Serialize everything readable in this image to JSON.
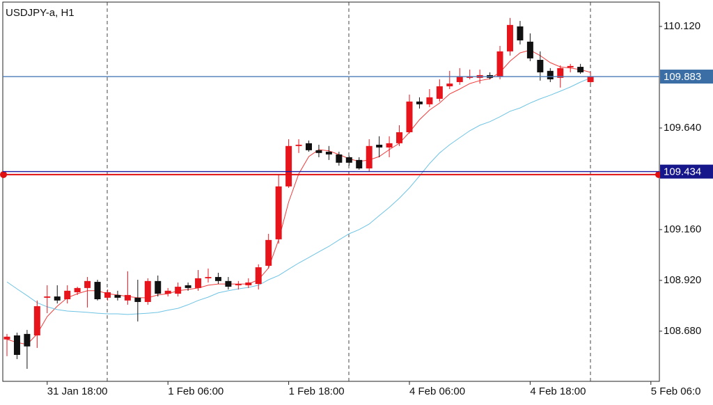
{
  "chart_data": {
    "type": "candlestick",
    "title": "USDJPY-a, H1",
    "open": [
      108.641,
      108.66,
      108.667,
      108.66,
      108.838,
      108.844,
      108.831,
      108.864,
      108.884,
      108.913,
      108.838,
      108.851,
      108.825,
      108.838,
      108.818,
      108.917,
      108.857,
      108.857,
      108.897,
      108.884,
      108.93,
      108.936,
      108.917,
      108.897,
      108.897,
      108.903,
      108.989,
      109.114,
      109.364,
      109.555,
      109.568,
      109.535,
      109.528,
      109.515,
      109.502,
      109.489,
      109.449,
      109.561,
      109.548,
      109.568,
      109.62,
      109.765,
      109.752,
      109.778,
      109.837,
      109.857,
      109.877,
      109.877,
      109.89,
      109.883,
      110.002,
      110.12,
      110.048,
      109.962,
      109.91,
      109.877,
      109.926,
      109.929,
      109.857
    ],
    "high": [
      108.667,
      108.673,
      108.686,
      108.825,
      108.897,
      108.897,
      108.897,
      108.89,
      108.936,
      108.923,
      108.877,
      108.871,
      108.963,
      108.923,
      108.93,
      108.943,
      108.884,
      108.91,
      108.91,
      108.969,
      108.976,
      108.956,
      108.936,
      108.917,
      108.93,
      108.996,
      109.14,
      109.423,
      109.587,
      109.587,
      109.581,
      109.561,
      109.555,
      109.528,
      109.509,
      109.502,
      109.587,
      109.601,
      109.601,
      109.653,
      109.798,
      109.785,
      109.824,
      109.87,
      109.91,
      109.923,
      109.916,
      109.916,
      109.903,
      110.028,
      110.16,
      110.146,
      110.087,
      110.002,
      109.923,
      109.936,
      109.943,
      109.943,
      109.903
    ],
    "low": [
      108.562,
      108.548,
      108.502,
      108.601,
      108.765,
      108.811,
      108.811,
      108.851,
      108.792,
      108.825,
      108.825,
      108.825,
      108.805,
      108.726,
      108.805,
      108.844,
      108.844,
      108.844,
      108.871,
      108.871,
      108.91,
      108.903,
      108.877,
      108.877,
      108.884,
      108.877,
      108.976,
      109.094,
      109.357,
      109.522,
      109.528,
      109.502,
      109.489,
      109.462,
      109.462,
      109.443,
      109.436,
      109.502,
      109.502,
      109.555,
      109.614,
      109.732,
      109.739,
      109.765,
      109.824,
      109.844,
      109.87,
      109.85,
      109.87,
      109.87,
      109.982,
      110.035,
      109.956,
      109.864,
      109.857,
      109.831,
      109.903,
      109.896,
      109.85
    ],
    "close": [
      108.654,
      108.568,
      108.608,
      108.798,
      108.844,
      108.825,
      108.871,
      108.884,
      108.917,
      108.831,
      108.864,
      108.838,
      108.851,
      108.818,
      108.917,
      108.857,
      108.871,
      108.89,
      108.884,
      108.93,
      108.936,
      108.917,
      108.89,
      108.903,
      108.91,
      108.982,
      109.111,
      109.364,
      109.555,
      109.561,
      109.535,
      109.522,
      109.515,
      109.476,
      109.476,
      109.449,
      109.555,
      109.548,
      109.568,
      109.62,
      109.765,
      109.752,
      109.785,
      109.837,
      109.85,
      109.883,
      109.883,
      109.89,
      109.877,
      110.002,
      110.127,
      110.054,
      109.969,
      109.903,
      109.87,
      109.923,
      109.933,
      109.903,
      109.883
    ],
    "up_color": "#e8141c",
    "down_color": "#111111",
    "lines": [
      {
        "color": "#f03c3c",
        "values": [
          108.641,
          108.627,
          108.617,
          108.667,
          108.749,
          108.798,
          108.838,
          108.857,
          108.871,
          108.871,
          108.857,
          108.851,
          108.844,
          108.838,
          108.838,
          108.851,
          108.857,
          108.871,
          108.877,
          108.884,
          108.897,
          108.903,
          108.903,
          108.903,
          108.903,
          108.923,
          108.979,
          109.111,
          109.291,
          109.423,
          109.505,
          109.538,
          109.532,
          109.515,
          109.495,
          109.482,
          109.489,
          109.505,
          109.538,
          109.568,
          109.62,
          109.679,
          109.725,
          109.758,
          109.801,
          109.824,
          109.85,
          109.864,
          109.873,
          109.903,
          109.956,
          109.995,
          110.008,
          109.982,
          109.949,
          109.929,
          109.923,
          109.916,
          109.903
        ]
      },
      {
        "color": "#6ec3e4",
        "values": [
          108.913,
          108.88,
          108.848,
          108.815,
          108.795,
          108.782,
          108.775,
          108.772,
          108.769,
          108.765,
          108.762,
          108.762,
          108.759,
          108.762,
          108.765,
          108.769,
          108.779,
          108.788,
          108.805,
          108.825,
          108.841,
          108.861,
          108.871,
          108.88,
          108.887,
          108.897,
          108.923,
          108.943,
          108.973,
          109.002,
          109.028,
          109.055,
          109.081,
          109.111,
          109.14,
          109.16,
          109.186,
          109.226,
          109.265,
          109.308,
          109.357,
          109.413,
          109.472,
          109.522,
          109.561,
          109.594,
          109.627,
          109.653,
          109.67,
          109.693,
          109.719,
          109.735,
          109.758,
          109.778,
          109.795,
          109.814,
          109.834,
          109.857,
          109.877
        ]
      }
    ],
    "levels": [
      {
        "value": 109.42,
        "color": "#e01010"
      },
      {
        "value": 109.434,
        "label": "109.434",
        "color": "#1a1aa0",
        "label_bg": "#17178c"
      },
      {
        "value": 109.883,
        "label": "109.883",
        "color": "#4a7ab8",
        "label_bg": "#3a6ea5"
      }
    ],
    "xlim": [
      -0.415,
      64.845
    ],
    "xticks": [
      {
        "value": 4,
        "label": "31 Jan 18:00"
      },
      {
        "value": 16,
        "label": "1 Feb 06:00"
      },
      {
        "value": 28,
        "label": "1 Feb 18:00"
      },
      {
        "value": 40,
        "label": "4 Feb 06:00"
      },
      {
        "value": 52,
        "label": "4 Feb 18:00"
      },
      {
        "value": 64,
        "label": "5 Feb 06:0"
      }
    ],
    "ylim": [
      108.443,
      110.235
    ],
    "yticks": [
      {
        "value": 110.12,
        "label": "110.120"
      },
      {
        "value": 109.64,
        "label": "109.640"
      },
      {
        "value": 109.16,
        "label": "109.160"
      },
      {
        "value": 108.92,
        "label": "108.920"
      },
      {
        "value": 108.68,
        "label": "108.680"
      }
    ]
  }
}
